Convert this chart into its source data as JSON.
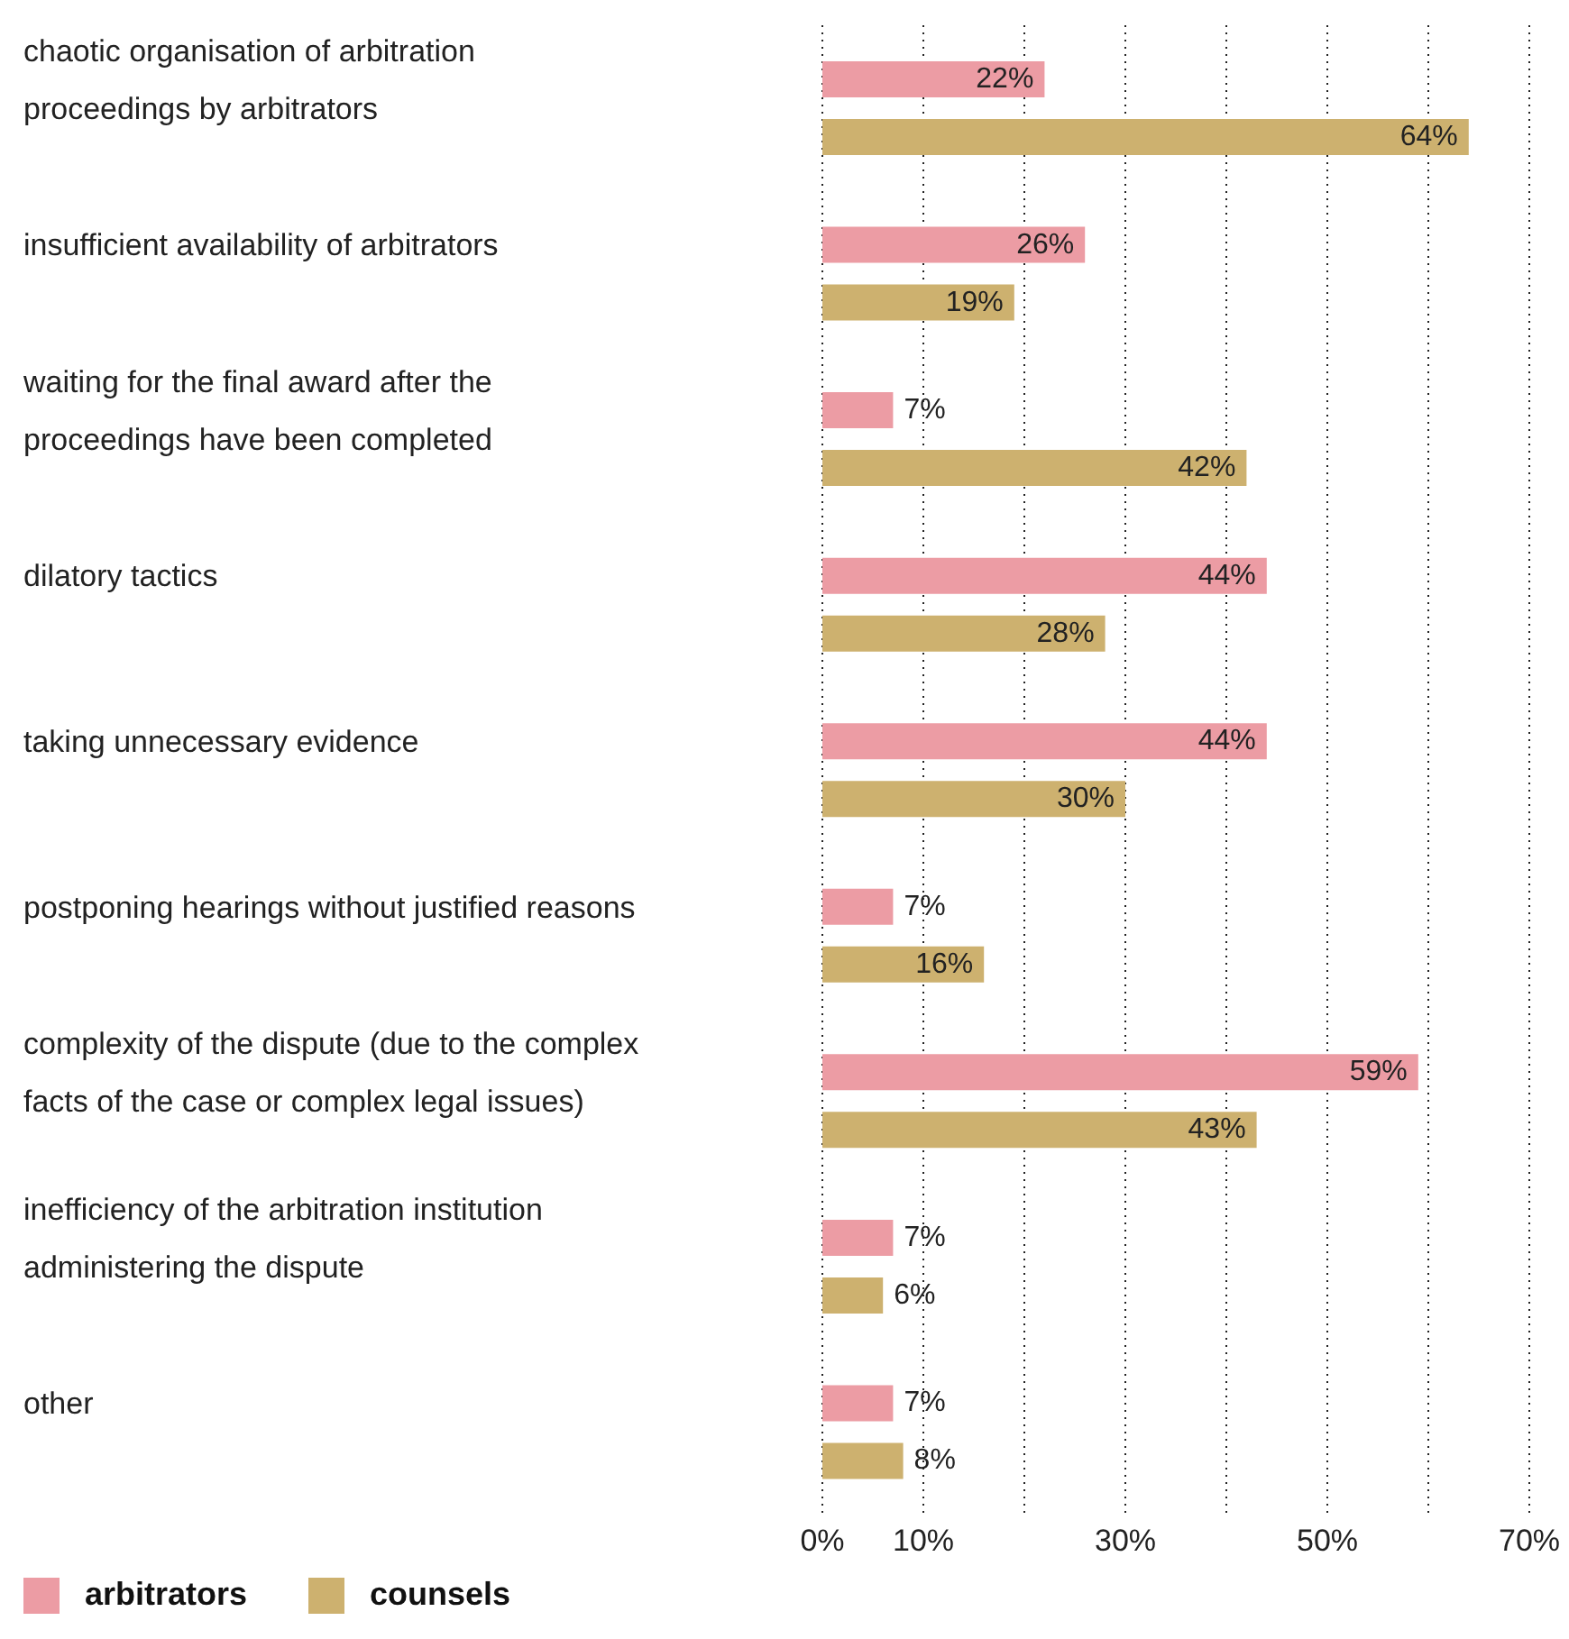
{
  "chart_data": {
    "type": "bar",
    "orientation": "horizontal",
    "categories": [
      "chaotic organisation of arbitration proceedings by arbitrators",
      "insufficient availability of arbitrators",
      "waiting for the final award after the proceedings have been completed",
      "dilatory tactics",
      "taking unnecessary evidence",
      "postponing hearings without justified reasons",
      "complexity of the dispute (due to the complex facts of the case or complex legal issues)",
      "inefficiency of the arbitration institution administering the dispute",
      "other"
    ],
    "series": [
      {
        "name": "arbitrators",
        "color": "#ec9ca4",
        "values": [
          22,
          26,
          7,
          44,
          44,
          7,
          59,
          7,
          7
        ],
        "value_labels": [
          "22%",
          "26%",
          "7%",
          "44%",
          "44%",
          "7%",
          "59%",
          "7%",
          "7%"
        ]
      },
      {
        "name": "counsels",
        "color": "#cdb16f",
        "values": [
          64,
          19,
          42,
          28,
          30,
          16,
          43,
          6,
          8
        ],
        "value_labels": [
          "64%",
          "19%",
          "42%",
          "28%",
          "30%",
          "16%",
          "43%",
          "6%",
          "8%"
        ]
      }
    ],
    "xlim": [
      0,
      70
    ],
    "xticks": [
      {
        "value": 0,
        "label": "0%"
      },
      {
        "value": 10,
        "label": "10%"
      },
      {
        "value": 20,
        "label": null
      },
      {
        "value": 30,
        "label": "30%"
      },
      {
        "value": 40,
        "label": null
      },
      {
        "value": 50,
        "label": "50%"
      },
      {
        "value": 60,
        "label": null
      },
      {
        "value": 70,
        "label": "70%"
      }
    ],
    "grid": "x",
    "legend": "bottom left"
  }
}
